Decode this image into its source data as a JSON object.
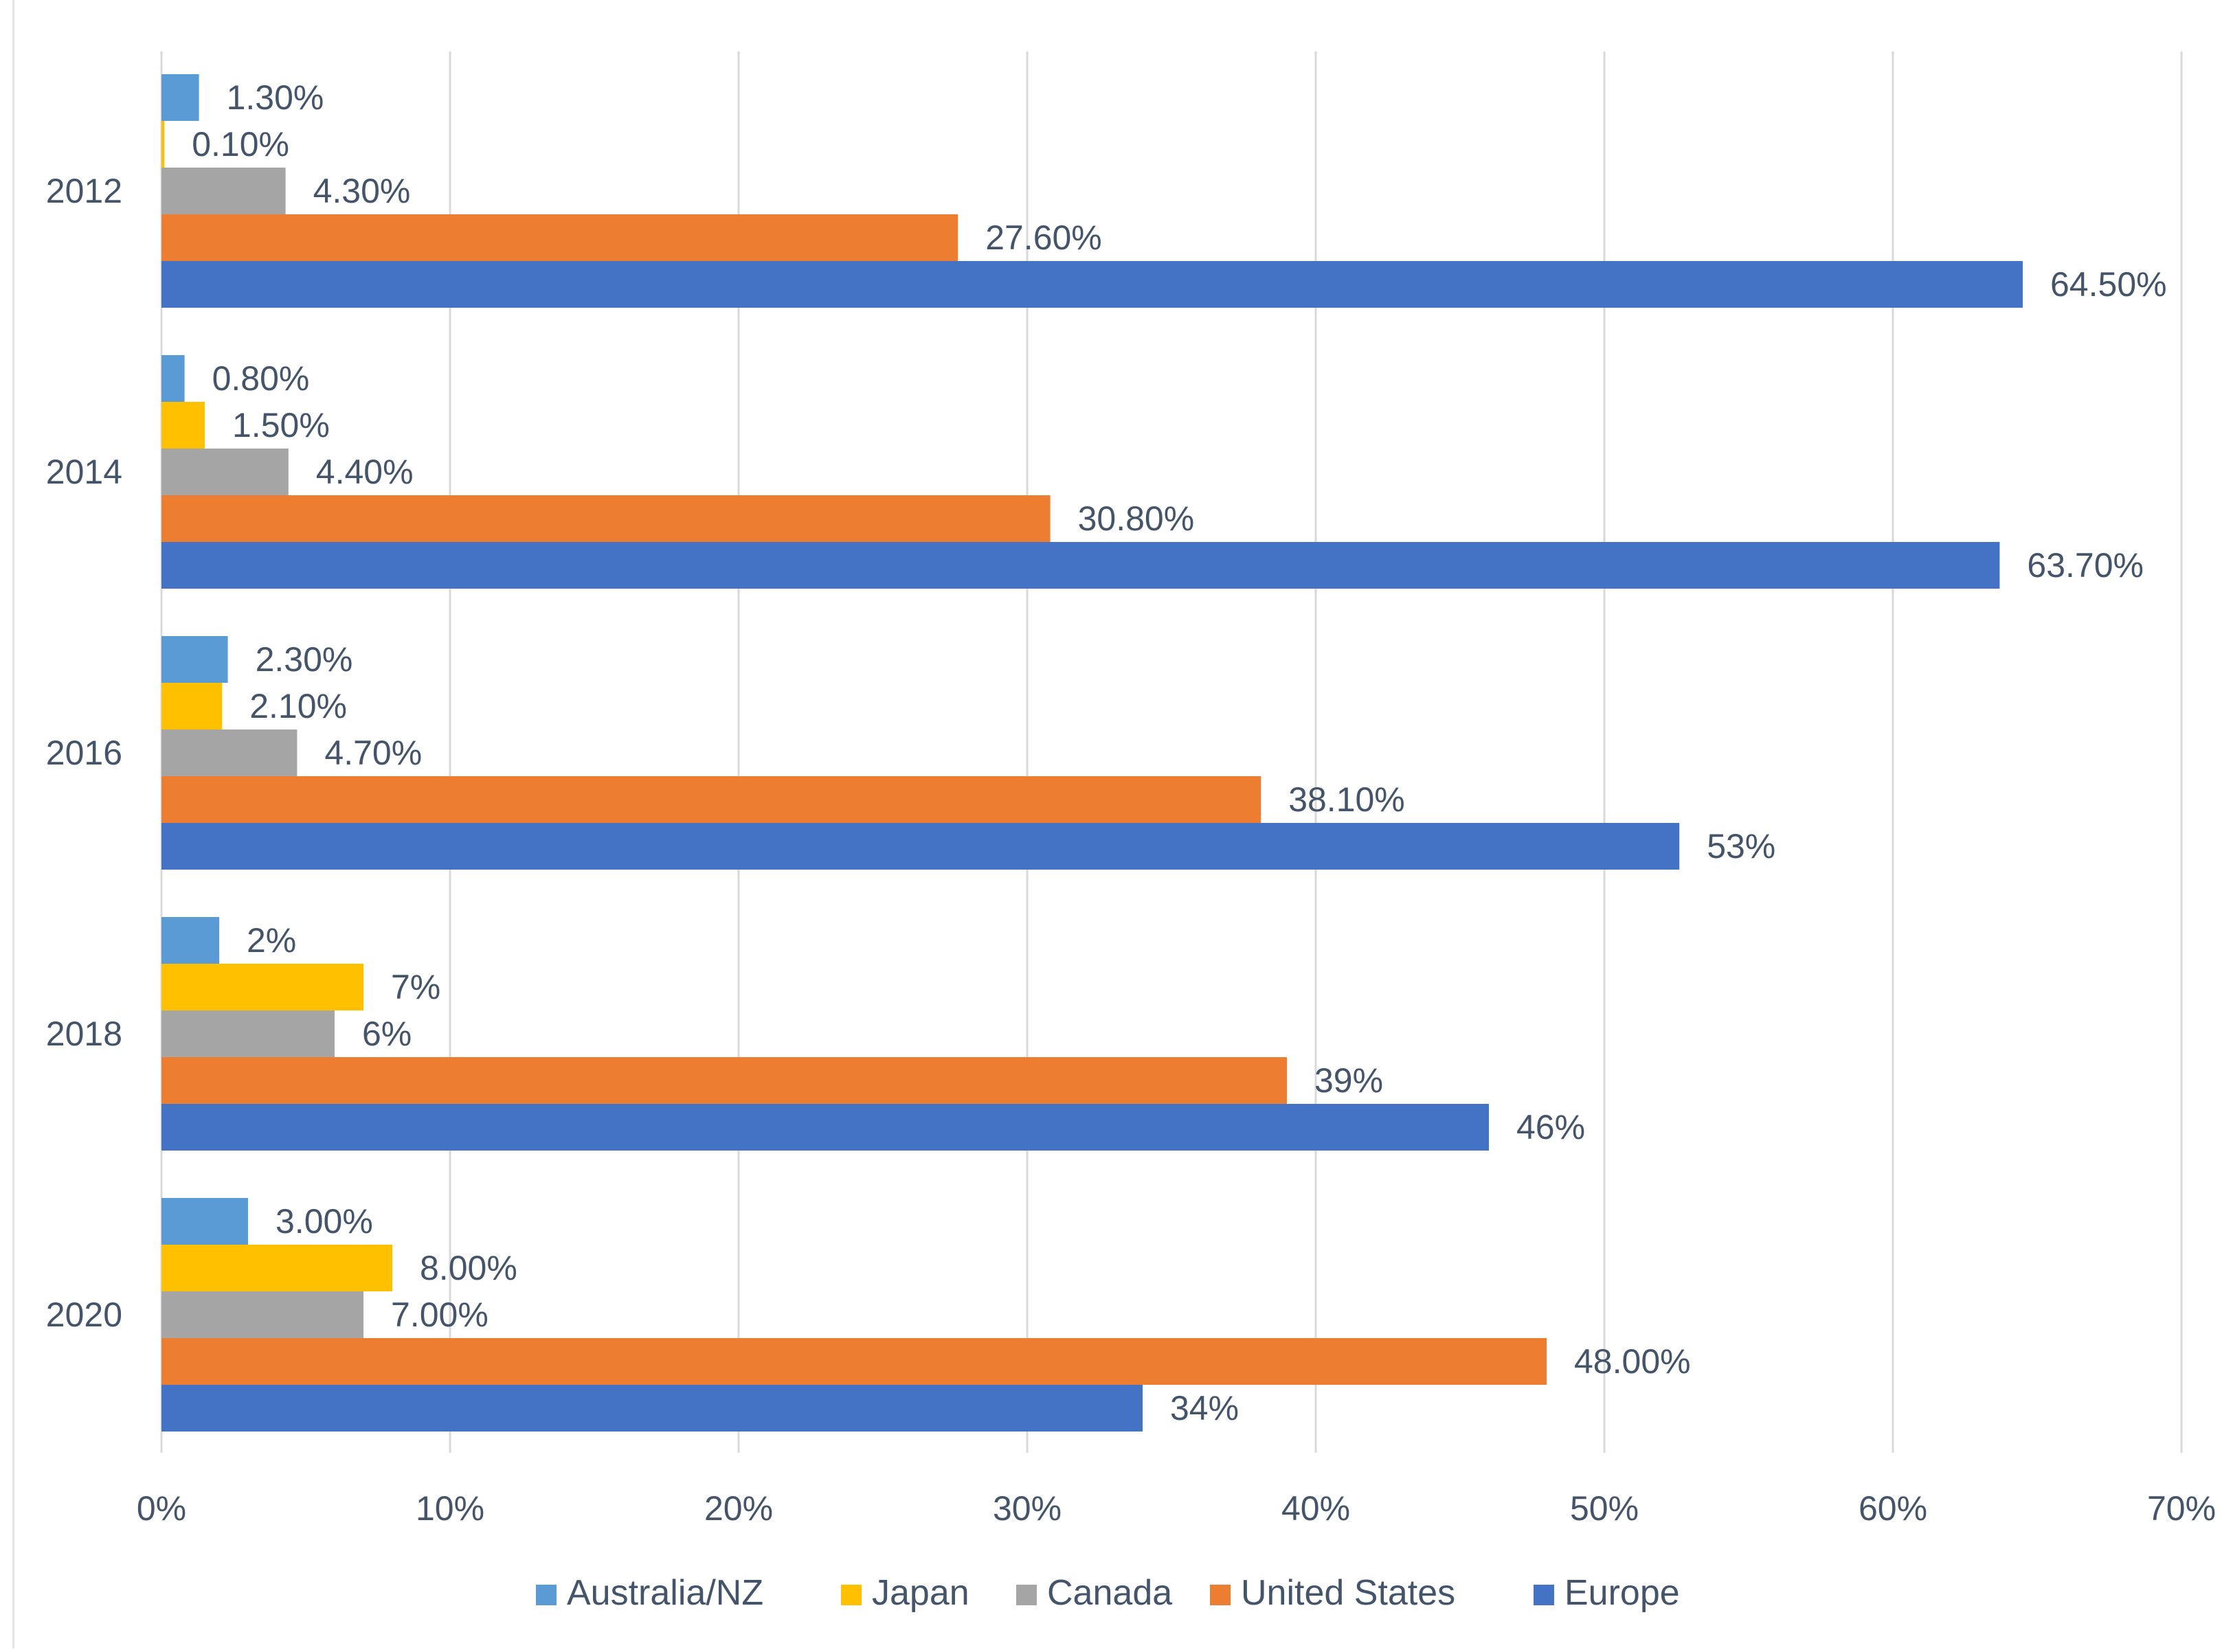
{
  "chart_data": {
    "type": "bar",
    "orientation": "horizontal",
    "title": "",
    "xlabel": "",
    "ylabel": "",
    "xlim": [
      0,
      70
    ],
    "x_ticks": [
      "0%",
      "10%",
      "20%",
      "30%",
      "40%",
      "50%",
      "60%",
      "70%"
    ],
    "x_tick_values": [
      0,
      10,
      20,
      30,
      40,
      50,
      60,
      70
    ],
    "grid": true,
    "legend_position": "bottom",
    "categories": [
      "2012",
      "2014",
      "2016",
      "2018",
      "2020"
    ],
    "series": [
      {
        "name": "Australia/NZ",
        "color": "#5b9bd5",
        "values": [
          1.3,
          0.8,
          2.3,
          2.0,
          3.0
        ],
        "labels": [
          "1.30%",
          "0.80%",
          "2.30%",
          "2%",
          "3.00%"
        ]
      },
      {
        "name": "Japan",
        "color": "#ffc000",
        "values": [
          0.1,
          1.5,
          2.1,
          7.0,
          8.0
        ],
        "labels": [
          "0.10%",
          "1.50%",
          "2.10%",
          "7%",
          "8.00%"
        ]
      },
      {
        "name": "Canada",
        "color": "#a5a5a5",
        "values": [
          4.3,
          4.4,
          4.7,
          6.0,
          7.0
        ],
        "labels": [
          "4.30%",
          "4.40%",
          "4.70%",
          "6%",
          "7.00%"
        ]
      },
      {
        "name": "United States",
        "color": "#ed7d31",
        "values": [
          27.6,
          30.8,
          38.1,
          39.0,
          48.0
        ],
        "labels": [
          "27.60%",
          "30.80%",
          "38.10%",
          "39%",
          "48.00%"
        ]
      },
      {
        "name": "Europe",
        "color": "#4472c4",
        "values": [
          64.5,
          63.7,
          52.6,
          46.0,
          34.0
        ],
        "labels": [
          "64.50%",
          "63.70%",
          "53%",
          "46%",
          "34%"
        ]
      }
    ]
  }
}
